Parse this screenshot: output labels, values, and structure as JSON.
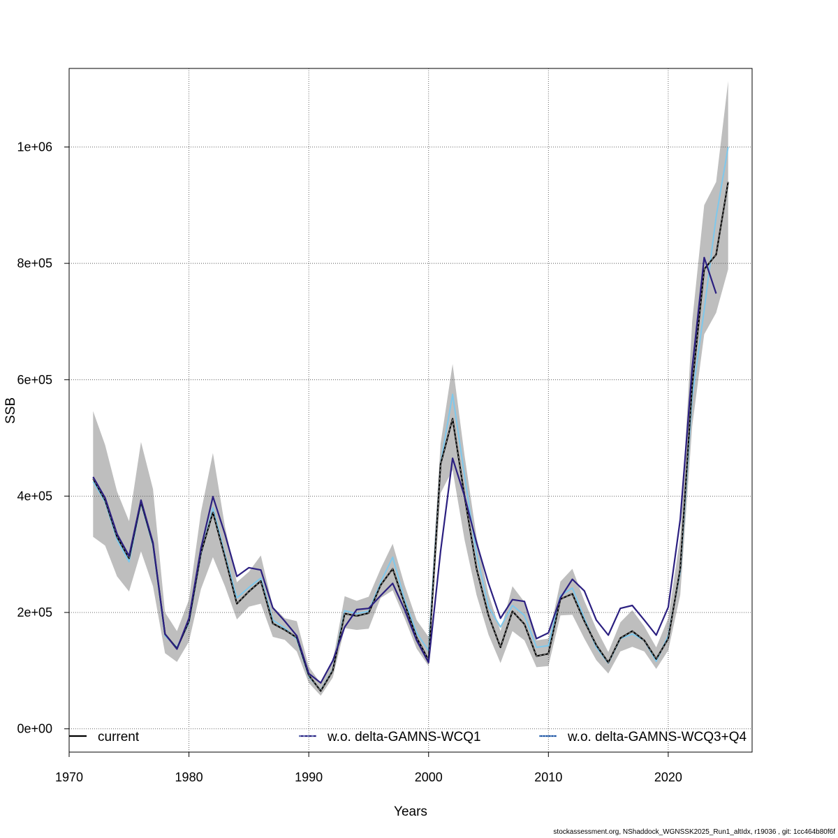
{
  "footer_text": "stockassessment.org, NShaddock_WGNSSK2025_Run1_altIdx, r19036 , git: 1cc464b80f6f",
  "chart_data": {
    "type": "line",
    "xlabel": "Years",
    "ylabel": "SSB",
    "xlim": [
      1970,
      2027
    ],
    "ylim": [
      -40000,
      1135000
    ],
    "x_ticks": [
      1970,
      1980,
      1990,
      2000,
      2010,
      2020
    ],
    "y_ticks": [
      0,
      200000,
      400000,
      600000,
      800000,
      1000000
    ],
    "y_tick_labels": [
      "0e+00",
      "2e+05",
      "4e+05",
      "6e+05",
      "8e+05",
      "1e+06"
    ],
    "grid": true,
    "legend_position": "bottom",
    "colors": {
      "band": "#bebebe",
      "current": "#000000",
      "wcq1": "#2b1f80",
      "wcq3": "#7ec8ec",
      "grid": "#555555"
    },
    "confidence_band": {
      "x": [
        1972,
        1973,
        1974,
        1975,
        1976,
        1977,
        1978,
        1979,
        1980,
        1981,
        1982,
        1983,
        1984,
        1985,
        1986,
        1987,
        1988,
        1989,
        1990,
        1991,
        1992,
        1993,
        1994,
        1995,
        1996,
        1997,
        1998,
        1999,
        2000,
        2001,
        2002,
        2003,
        2004,
        2005,
        2006,
        2007,
        2008,
        2009,
        2010,
        2011,
        2012,
        2013,
        2014,
        2015,
        2016,
        2017,
        2018,
        2019,
        2020,
        2021,
        2022,
        2023,
        2024,
        2025
      ],
      "lower": [
        330000,
        315000,
        262000,
        236000,
        305000,
        245000,
        130000,
        115000,
        150000,
        240000,
        295000,
        245000,
        188000,
        210000,
        215000,
        158000,
        153000,
        133000,
        79000,
        57000,
        88000,
        173000,
        170000,
        172000,
        225000,
        238000,
        190000,
        138000,
        108000,
        405000,
        445000,
        325000,
        230000,
        162000,
        113000,
        168000,
        152000,
        106000,
        108000,
        195000,
        196000,
        155000,
        118000,
        95000,
        133000,
        141000,
        133000,
        103000,
        135000,
        230000,
        520000,
        678000,
        715000,
        790000
      ],
      "upper": [
        546000,
        488000,
        408000,
        357000,
        493000,
        412000,
        200000,
        168000,
        222000,
        372000,
        474000,
        348000,
        252000,
        270000,
        298000,
        210000,
        190000,
        185000,
        107000,
        78000,
        116000,
        228000,
        220000,
        227000,
        275000,
        318000,
        247000,
        187000,
        158000,
        490000,
        627000,
        470000,
        330000,
        232000,
        168000,
        245000,
        218000,
        152000,
        155000,
        253000,
        275000,
        220000,
        172000,
        132000,
        183000,
        204000,
        176000,
        140000,
        190000,
        330000,
        700000,
        900000,
        940000,
        1113000
      ]
    },
    "series": [
      {
        "name": "current",
        "x": [
          1972,
          1973,
          1974,
          1975,
          1976,
          1977,
          1978,
          1979,
          1980,
          1981,
          1982,
          1983,
          1984,
          1985,
          1986,
          1987,
          1988,
          1989,
          1990,
          1991,
          1992,
          1993,
          1994,
          1995,
          1996,
          1997,
          1998,
          1999,
          2000,
          2001,
          2002,
          2003,
          2004,
          2005,
          2006,
          2007,
          2008,
          2009,
          2010,
          2011,
          2012,
          2013,
          2014,
          2015,
          2016,
          2017,
          2018,
          2019,
          2020,
          2021,
          2022,
          2023,
          2024,
          2025
        ],
        "values": [
          430000,
          393000,
          330000,
          293000,
          390000,
          318000,
          163000,
          138000,
          185000,
          302000,
          372000,
          295000,
          215000,
          236000,
          254000,
          181000,
          170000,
          157000,
          92000,
          65000,
          100000,
          198000,
          194000,
          199000,
          247000,
          275000,
          215000,
          157000,
          118000,
          455000,
          533000,
          400000,
          275000,
          195000,
          140000,
          202000,
          180000,
          125000,
          129000,
          223000,
          232000,
          185000,
          144000,
          114000,
          156000,
          168000,
          152000,
          120000,
          155000,
          275000,
          590000,
          790000,
          815000,
          940000
        ]
      },
      {
        "name": "w.o. delta-GAMNS-WCQ1",
        "x": [
          1972,
          1973,
          1974,
          1975,
          1976,
          1977,
          1978,
          1979,
          1980,
          1981,
          1982,
          1983,
          1984,
          1985,
          1986,
          1987,
          1988,
          1989,
          1990,
          1991,
          1992,
          1993,
          1994,
          1995,
          1996,
          1997,
          1998,
          1999,
          2000,
          2001,
          2002,
          2003,
          2004,
          2005,
          2006,
          2007,
          2008,
          2009,
          2010,
          2011,
          2012,
          2013,
          2014,
          2015,
          2016,
          2017,
          2018,
          2019,
          2020,
          2021,
          2022,
          2023,
          2024
        ],
        "values": [
          433000,
          397000,
          335000,
          297000,
          393000,
          320000,
          163000,
          137000,
          190000,
          310000,
          399000,
          335000,
          262000,
          277000,
          273000,
          208000,
          185000,
          160000,
          95000,
          79000,
          117000,
          175000,
          205000,
          207000,
          229000,
          250000,
          205000,
          152000,
          114000,
          305000,
          465000,
          400000,
          320000,
          250000,
          190000,
          222000,
          219000,
          155000,
          165000,
          225000,
          257000,
          237000,
          187000,
          161000,
          207000,
          212000,
          187000,
          161000,
          209000,
          360000,
          620000,
          810000,
          748000
        ]
      },
      {
        "name": "w.o. delta-GAMNS-WCQ3+Q4",
        "x": [
          1972,
          1973,
          1974,
          1975,
          1976,
          1977,
          1978,
          1979,
          1980,
          1981,
          1982,
          1983,
          1984,
          1985,
          1986,
          1987,
          1988,
          1989,
          1990,
          1991,
          1992,
          1993,
          1994,
          1995,
          1996,
          1997,
          1998,
          1999,
          2000,
          2001,
          2002,
          2003,
          2004,
          2005,
          2006,
          2007,
          2008,
          2009,
          2010,
          2011,
          2012,
          2013,
          2014,
          2015,
          2016,
          2017,
          2018,
          2019,
          2020,
          2021,
          2022,
          2023,
          2024,
          2025
        ],
        "values": [
          425000,
          390000,
          325000,
          287000,
          388000,
          315000,
          160000,
          140000,
          182000,
          300000,
          380000,
          300000,
          225000,
          243000,
          259000,
          187000,
          173000,
          154000,
          90000,
          66000,
          101000,
          203000,
          198000,
          202000,
          252000,
          295000,
          222000,
          165000,
          134000,
          455000,
          575000,
          435000,
          300000,
          210000,
          175000,
          212000,
          195000,
          140000,
          143000,
          229000,
          242000,
          190000,
          140000,
          113000,
          155000,
          163000,
          152000,
          116000,
          160000,
          270000,
          570000,
          720000,
          880000,
          1000000
        ]
      }
    ]
  }
}
